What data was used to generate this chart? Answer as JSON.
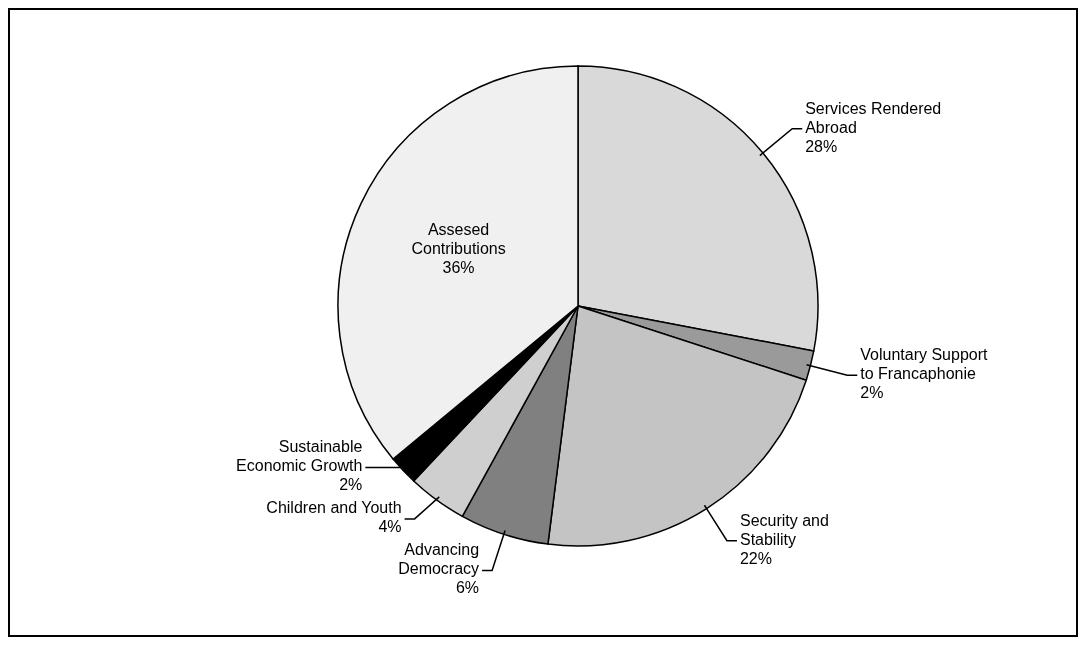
{
  "chart_data": {
    "type": "pie",
    "categories": [
      "Services Rendered Abroad",
      "Voluntary Support to Francaphonie",
      "Security and Stability",
      "Advancing Democracy",
      "Children and Youth",
      "Sustainable Economic Growth",
      "Assesed Contributions"
    ],
    "values": [
      28,
      2,
      22,
      6,
      4,
      2,
      36
    ],
    "value_labels": [
      "28%",
      "2%",
      "22%",
      "6%",
      "4%",
      "2%",
      "36%"
    ],
    "colors": [
      "#d9d9d9",
      "#9a9a9a",
      "#c4c4c4",
      "#808080",
      "#cfcfcf",
      "#000000",
      "#f0f0f0"
    ]
  }
}
